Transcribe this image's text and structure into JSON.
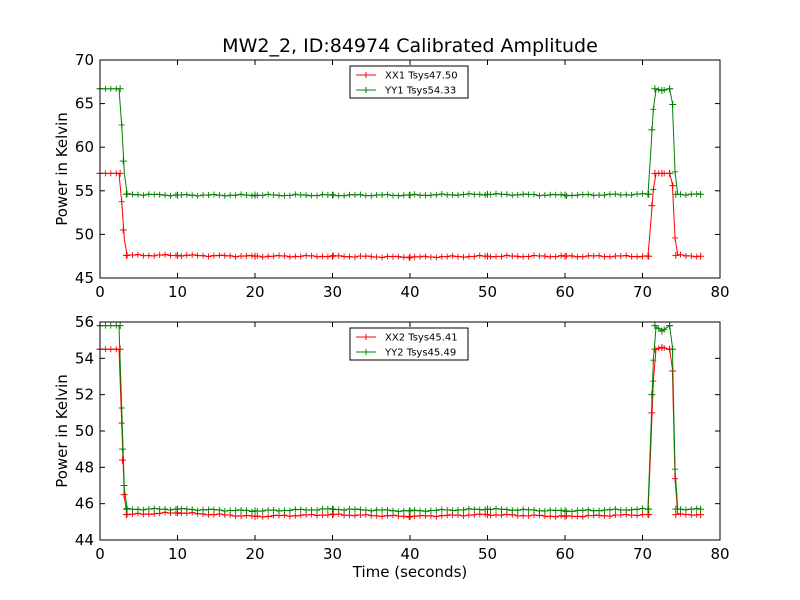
{
  "chart_data": [
    {
      "type": "line",
      "title": "MW2_2, ID:84974 Calibrated Amplitude",
      "xlabel": "",
      "ylabel": "Power in Kelvin",
      "xlim": [
        0,
        80
      ],
      "ylim": [
        45,
        70
      ],
      "xticks": [
        "0",
        "10",
        "20",
        "30",
        "40",
        "50",
        "60",
        "70",
        "80"
      ],
      "yticks": [
        "45",
        "50",
        "55",
        "60",
        "65",
        "70"
      ],
      "legend_position": "top-center",
      "marker": "+",
      "grid": false,
      "series": [
        {
          "name": "XX1 Tsys47.50",
          "color": "#ff0000",
          "x": [
            0,
            2.6,
            3.0,
            3.4,
            10,
            20,
            30,
            40,
            50,
            60,
            70.8,
            71.2,
            71.6,
            72.5,
            73.5,
            73.9,
            74.3,
            77.5
          ],
          "y": [
            57.0,
            57.0,
            50.5,
            47.6,
            47.6,
            47.5,
            47.5,
            47.4,
            47.5,
            47.5,
            47.5,
            53.3,
            57.0,
            57.0,
            57.0,
            55.6,
            47.6,
            47.5
          ]
        },
        {
          "name": "YY1 Tsys54.33",
          "color": "#008000",
          "x": [
            0,
            2.6,
            3.0,
            3.4,
            10,
            20,
            30,
            40,
            50,
            60,
            70.8,
            71.2,
            71.6,
            72.5,
            73.5,
            73.9,
            74.3,
            77.5
          ],
          "y": [
            66.7,
            66.7,
            58.4,
            54.6,
            54.5,
            54.5,
            54.5,
            54.5,
            54.6,
            54.5,
            54.6,
            62.0,
            66.7,
            66.5,
            66.7,
            64.9,
            54.6,
            54.6
          ]
        }
      ]
    },
    {
      "type": "line",
      "title": "",
      "xlabel": "Time (seconds)",
      "ylabel": "Power in Kelvin",
      "xlim": [
        0,
        80
      ],
      "ylim": [
        44,
        56
      ],
      "xticks": [
        "0",
        "10",
        "20",
        "30",
        "40",
        "50",
        "60",
        "70",
        "80"
      ],
      "yticks": [
        "44",
        "46",
        "48",
        "50",
        "52",
        "54",
        "56"
      ],
      "legend_position": "top-center",
      "marker": "+",
      "grid": false,
      "series": [
        {
          "name": "XX2 Tsys45.41",
          "color": "#ff0000",
          "x": [
            0,
            2.6,
            2.9,
            3.1,
            3.4,
            10,
            20,
            30,
            40,
            50,
            60,
            70.8,
            71.2,
            71.6,
            72.5,
            73.5,
            73.9,
            74.3,
            77.5
          ],
          "y": [
            54.5,
            54.5,
            48.4,
            46.5,
            45.4,
            45.5,
            45.3,
            45.4,
            45.3,
            45.4,
            45.3,
            45.4,
            51.0,
            54.5,
            54.6,
            54.5,
            53.3,
            45.4,
            45.4
          ]
        },
        {
          "name": "YY2 Tsys45.49",
          "color": "#008000",
          "x": [
            0,
            2.6,
            2.9,
            3.1,
            3.4,
            10,
            20,
            30,
            40,
            50,
            60,
            70.8,
            71.2,
            71.6,
            72.5,
            73.5,
            73.9,
            74.3,
            77.5
          ],
          "y": [
            55.8,
            55.8,
            49.0,
            47.0,
            45.7,
            45.7,
            45.6,
            45.7,
            45.6,
            45.7,
            45.6,
            45.7,
            52.0,
            55.8,
            55.5,
            55.8,
            54.5,
            45.7,
            45.7
          ]
        }
      ]
    }
  ]
}
